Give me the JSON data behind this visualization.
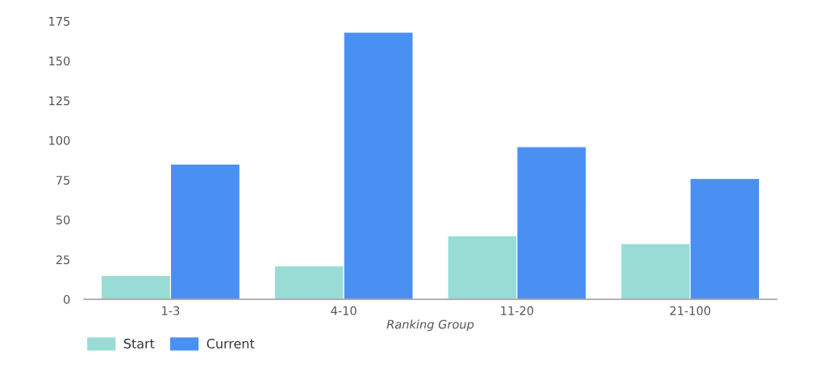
{
  "chart_data": {
    "type": "bar",
    "xlabel": "Ranking Group",
    "categories": [
      "1-3",
      "4-10",
      "11-20",
      "21-100"
    ],
    "series": [
      {
        "name": "Start",
        "color": "#99dcd5",
        "values": [
          15,
          21,
          40,
          35
        ]
      },
      {
        "name": "Current",
        "color": "#4a90f2",
        "values": [
          85,
          168,
          96,
          76
        ]
      }
    ],
    "ylim": [
      0,
      175
    ],
    "yticks": [
      0,
      25,
      50,
      75,
      100,
      125,
      150,
      175
    ],
    "grid": false,
    "legend": "bottom left"
  }
}
